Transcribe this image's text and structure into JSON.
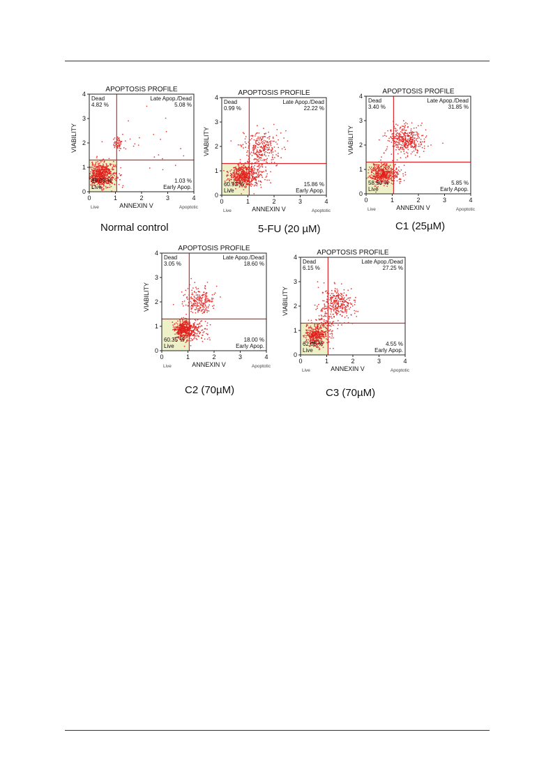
{
  "chart_data": [
    {
      "type": "scatter",
      "title": "APOPTOSIS PROFILE",
      "caption": "Normal control",
      "xlabel": "ANNEXIN V",
      "ylabel": "VIABILITY",
      "xlim": [
        0,
        4
      ],
      "ylim": [
        0,
        4
      ],
      "ticks": [
        "0",
        "1",
        "2",
        "3",
        "4"
      ],
      "x_markers": [
        "Live",
        "Apoptotic"
      ],
      "quadrants": {
        "dead": {
          "label": "Dead",
          "value": "4.82 %"
        },
        "late": {
          "label": "Late Apop./Dead",
          "value": "5.08 %"
        },
        "early": {
          "label": "Early Apop.",
          "value": "1.03 %"
        },
        "live": {
          "label": "Live",
          "value": "89.08 %"
        }
      },
      "clusters": [
        {
          "x": 0.45,
          "y": 0.7,
          "sx": 0.28,
          "sy": 0.25,
          "n": 650
        },
        {
          "x": 1.1,
          "y": 2.0,
          "sx": 0.12,
          "sy": 0.15,
          "n": 50
        },
        {
          "x": 2.2,
          "y": 1.6,
          "sx": 0.8,
          "sy": 0.6,
          "n": 25
        }
      ]
    },
    {
      "type": "scatter",
      "title": "APOPTOSIS PROFILE",
      "caption": "5-FU (20 µM)",
      "xlabel": "ANNEXIN V",
      "ylabel": "VIABILITY",
      "xlim": [
        0,
        4
      ],
      "ylim": [
        0,
        4
      ],
      "ticks": [
        "0",
        "1",
        "2",
        "3",
        "4"
      ],
      "x_markers": [
        "Live",
        "Apoptotic"
      ],
      "quadrants": {
        "dead": {
          "label": "Dead",
          "value": "0.99 %"
        },
        "late": {
          "label": "Late Apop./Dead",
          "value": "22.22 %"
        },
        "early": {
          "label": "Early Apop.",
          "value": "15.86 %"
        },
        "live": {
          "label": "Live",
          "value": "60.93 %"
        }
      },
      "clusters": [
        {
          "x": 0.75,
          "y": 0.8,
          "sx": 0.25,
          "sy": 0.22,
          "n": 400
        },
        {
          "x": 1.1,
          "y": 0.85,
          "sx": 0.3,
          "sy": 0.25,
          "n": 150
        },
        {
          "x": 1.5,
          "y": 1.9,
          "sx": 0.35,
          "sy": 0.35,
          "n": 280
        }
      ]
    },
    {
      "type": "scatter",
      "title": "APOPTOSIS PROFILE",
      "caption": "C1 (25µM)",
      "xlabel": "ANNEXIN V",
      "ylabel": "VIABILITY",
      "xlim": [
        0,
        4
      ],
      "ylim": [
        0,
        4
      ],
      "ticks": [
        "0",
        "1",
        "2",
        "3",
        "4"
      ],
      "x_markers": [
        "Live",
        "Apoptotic"
      ],
      "quadrants": {
        "dead": {
          "label": "Dead",
          "value": "3.40 %"
        },
        "late": {
          "label": "Late Apop./Dead",
          "value": "31.85 %"
        },
        "early": {
          "label": "Early Apop.",
          "value": "5.85 %"
        },
        "live": {
          "label": "Live",
          "value": "58.90 %"
        }
      },
      "clusters": [
        {
          "x": 0.6,
          "y": 0.8,
          "sx": 0.22,
          "sy": 0.22,
          "n": 400
        },
        {
          "x": 1.1,
          "y": 0.8,
          "sx": 0.2,
          "sy": 0.2,
          "n": 70
        },
        {
          "x": 1.5,
          "y": 2.2,
          "sx": 0.35,
          "sy": 0.3,
          "n": 380
        }
      ]
    },
    {
      "type": "scatter",
      "title": "APOPTOSIS PROFILE",
      "caption": "C2 (70µM)",
      "xlabel": "ANNEXIN V",
      "ylabel": "VIABILITY",
      "xlim": [
        0,
        4
      ],
      "ylim": [
        0,
        4
      ],
      "ticks": [
        "0",
        "1",
        "2",
        "3",
        "4"
      ],
      "x_markers": [
        "Live",
        "Apoptotic"
      ],
      "quadrants": {
        "dead": {
          "label": "Dead",
          "value": "3.05 %"
        },
        "late": {
          "label": "Late Apop./Dead",
          "value": "18.60 %"
        },
        "early": {
          "label": "Early Apop.",
          "value": "18.00 %"
        },
        "live": {
          "label": "Live",
          "value": "60.35 %"
        }
      },
      "clusters": [
        {
          "x": 0.85,
          "y": 0.85,
          "sx": 0.18,
          "sy": 0.2,
          "n": 380
        },
        {
          "x": 1.15,
          "y": 0.8,
          "sx": 0.3,
          "sy": 0.22,
          "n": 160
        },
        {
          "x": 1.4,
          "y": 2.0,
          "sx": 0.3,
          "sy": 0.3,
          "n": 220
        }
      ]
    },
    {
      "type": "scatter",
      "title": "APOPTOSIS PROFILE",
      "caption": "C3 (70µM)",
      "xlabel": "ANNEXIN V",
      "ylabel": "VIABILITY",
      "xlim": [
        0,
        4
      ],
      "ylim": [
        0,
        4
      ],
      "ticks": [
        "0",
        "1",
        "2",
        "3",
        "4"
      ],
      "x_markers": [
        "Live",
        "Apoptotic"
      ],
      "quadrants": {
        "dead": {
          "label": "Dead",
          "value": "6.15 %"
        },
        "late": {
          "label": "Late Apop./Dead",
          "value": "27.25 %"
        },
        "early": {
          "label": "Early Apop.",
          "value": "4.55 %"
        },
        "live": {
          "label": "Live",
          "value": "62.05 %"
        }
      },
      "clusters": [
        {
          "x": 0.6,
          "y": 0.8,
          "sx": 0.22,
          "sy": 0.25,
          "n": 400
        },
        {
          "x": 1.0,
          "y": 1.5,
          "sx": 0.2,
          "sy": 0.3,
          "n": 80
        },
        {
          "x": 1.4,
          "y": 2.1,
          "sx": 0.3,
          "sy": 0.35,
          "n": 280
        }
      ]
    }
  ]
}
